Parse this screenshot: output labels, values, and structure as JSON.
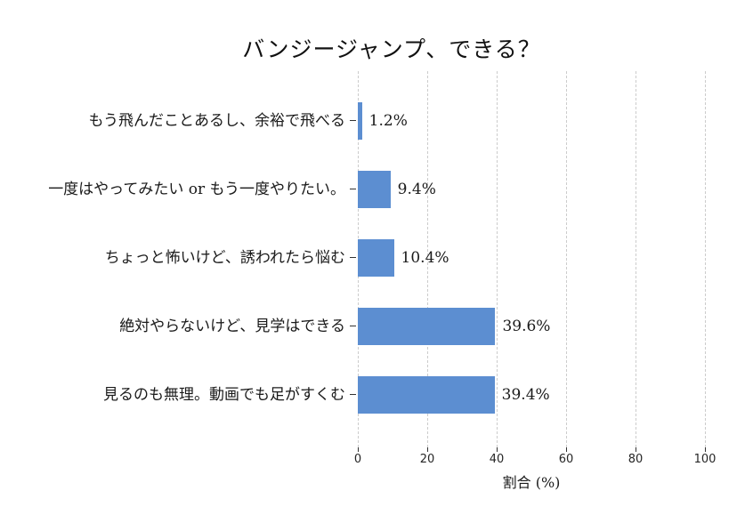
{
  "chart_data": {
    "type": "bar",
    "orientation": "horizontal",
    "title": "バンジージャンプ、できる？",
    "xlabel": "割合 (%)",
    "categories": [
      "もう飛んだことあるし、余裕で飛べる",
      "一度はやってみたい or もう一度やりたい。",
      "ちょっと怖いけど、誘われたら悩む",
      "絶対やらないけど、見学はできる",
      "見るのも無理。動画でも足がすくむ"
    ],
    "values": [
      1.2,
      9.4,
      10.4,
      39.6,
      39.4
    ],
    "value_labels": [
      "1.2%",
      "9.4%",
      "10.4%",
      "39.6%",
      "39.4%"
    ],
    "xlim": [
      0,
      100
    ],
    "xticks": [
      "0",
      "20",
      "40",
      "60",
      "80",
      "100"
    ],
    "xtick_values": [
      0,
      20,
      40,
      60,
      80,
      100
    ],
    "grid": "dashed-vertical",
    "legend": "none",
    "bar_color": "#5C8ED1",
    "gridline_color": "#cccccc",
    "background": "#FFFFFF"
  }
}
